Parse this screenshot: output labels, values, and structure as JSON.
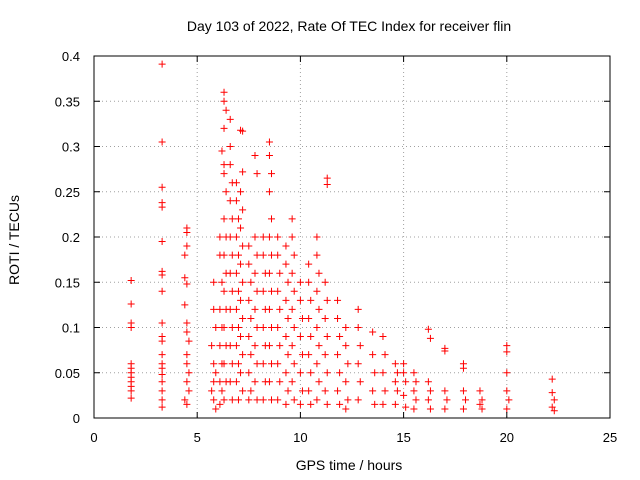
{
  "chart_data": {
    "type": "scatter",
    "title": "Day 103 of 2022, Rate Of TEC Index for receiver flin",
    "xlabel": "GPS time / hours",
    "ylabel": "ROTI / TECUs",
    "xlim": [
      0,
      25
    ],
    "ylim": [
      0,
      0.4
    ],
    "x_ticks": [
      0,
      5,
      10,
      15,
      20,
      25
    ],
    "x_tick_labels": [
      "0",
      "5",
      "10",
      "15",
      "20",
      "25"
    ],
    "y_ticks": [
      0,
      0.05,
      0.1,
      0.15,
      0.2,
      0.25,
      0.3,
      0.35,
      0.4
    ],
    "y_tick_labels": [
      "0",
      "0.05",
      "0.1",
      "0.15",
      "0.2",
      "0.25",
      "0.3",
      "0.35",
      "0.4"
    ],
    "grid": true,
    "marker": "+",
    "color": "#ff0000",
    "series": [
      {
        "points": [
          [
            1.8,
            0.152
          ],
          [
            1.8,
            0.126
          ],
          [
            1.8,
            0.105
          ],
          [
            1.8,
            0.1
          ],
          [
            1.8,
            0.06
          ],
          [
            1.8,
            0.055
          ],
          [
            1.8,
            0.05
          ],
          [
            1.8,
            0.045
          ],
          [
            1.8,
            0.04
          ],
          [
            1.8,
            0.035
          ],
          [
            1.8,
            0.03
          ],
          [
            1.8,
            0.022
          ],
          [
            3.3,
            0.391
          ],
          [
            3.3,
            0.305
          ],
          [
            3.3,
            0.255
          ],
          [
            3.3,
            0.238
          ],
          [
            3.3,
            0.233
          ],
          [
            3.3,
            0.195
          ],
          [
            3.3,
            0.162
          ],
          [
            3.3,
            0.158
          ],
          [
            3.3,
            0.14
          ],
          [
            3.3,
            0.105
          ],
          [
            3.3,
            0.09
          ],
          [
            3.3,
            0.085
          ],
          [
            3.3,
            0.07
          ],
          [
            3.3,
            0.06
          ],
          [
            3.3,
            0.055
          ],
          [
            3.3,
            0.048
          ],
          [
            3.3,
            0.04
          ],
          [
            3.3,
            0.03
          ],
          [
            3.3,
            0.02
          ],
          [
            3.3,
            0.012
          ],
          [
            4.5,
            0.21
          ],
          [
            4.5,
            0.205
          ],
          [
            4.5,
            0.19
          ],
          [
            4.4,
            0.18
          ],
          [
            4.4,
            0.155
          ],
          [
            4.5,
            0.148
          ],
          [
            4.4,
            0.125
          ],
          [
            4.5,
            0.105
          ],
          [
            4.5,
            0.095
          ],
          [
            4.6,
            0.085
          ],
          [
            4.5,
            0.07
          ],
          [
            4.5,
            0.06
          ],
          [
            4.6,
            0.05
          ],
          [
            4.5,
            0.04
          ],
          [
            4.6,
            0.03
          ],
          [
            4.4,
            0.02
          ],
          [
            4.5,
            0.015
          ],
          [
            5.8,
            0.15
          ],
          [
            5.8,
            0.12
          ],
          [
            5.9,
            0.1
          ],
          [
            5.7,
            0.08
          ],
          [
            5.8,
            0.06
          ],
          [
            5.9,
            0.05
          ],
          [
            5.8,
            0.04
          ],
          [
            5.7,
            0.03
          ],
          [
            5.8,
            0.02
          ],
          [
            5.9,
            0.01
          ],
          [
            6.1,
            0.2
          ],
          [
            6.1,
            0.18
          ],
          [
            6.2,
            0.15
          ],
          [
            6.1,
            0.12
          ],
          [
            6.2,
            0.1
          ],
          [
            6.1,
            0.08
          ],
          [
            6.2,
            0.06
          ],
          [
            6.1,
            0.04
          ],
          [
            6.2,
            0.03
          ],
          [
            6.1,
            0.015
          ],
          [
            6.3,
            0.36
          ],
          [
            6.3,
            0.35
          ],
          [
            6.4,
            0.34
          ],
          [
            6.3,
            0.32
          ],
          [
            6.2,
            0.295
          ],
          [
            6.3,
            0.28
          ],
          [
            6.3,
            0.27
          ],
          [
            6.4,
            0.25
          ],
          [
            6.3,
            0.22
          ],
          [
            6.4,
            0.2
          ],
          [
            6.3,
            0.18
          ],
          [
            6.4,
            0.16
          ],
          [
            6.3,
            0.14
          ],
          [
            6.4,
            0.12
          ],
          [
            6.3,
            0.1
          ],
          [
            6.4,
            0.08
          ],
          [
            6.3,
            0.06
          ],
          [
            6.4,
            0.04
          ],
          [
            6.3,
            0.02
          ],
          [
            6.6,
            0.33
          ],
          [
            6.6,
            0.3
          ],
          [
            6.6,
            0.28
          ],
          [
            6.7,
            0.26
          ],
          [
            6.6,
            0.24
          ],
          [
            6.7,
            0.22
          ],
          [
            6.6,
            0.2
          ],
          [
            6.7,
            0.18
          ],
          [
            6.6,
            0.16
          ],
          [
            6.7,
            0.14
          ],
          [
            6.6,
            0.12
          ],
          [
            6.7,
            0.1
          ],
          [
            6.6,
            0.08
          ],
          [
            6.7,
            0.06
          ],
          [
            6.6,
            0.04
          ],
          [
            6.7,
            0.02
          ],
          [
            6.9,
            0.26
          ],
          [
            6.9,
            0.24
          ],
          [
            7.0,
            0.22
          ],
          [
            6.9,
            0.2
          ],
          [
            7.0,
            0.18
          ],
          [
            6.9,
            0.16
          ],
          [
            7.0,
            0.14
          ],
          [
            6.9,
            0.12
          ],
          [
            7.0,
            0.1
          ],
          [
            6.9,
            0.08
          ],
          [
            7.0,
            0.06
          ],
          [
            6.9,
            0.04
          ],
          [
            7.0,
            0.02
          ],
          [
            7.1,
            0.318
          ],
          [
            7.2,
            0.317
          ],
          [
            7.2,
            0.272
          ],
          [
            7.1,
            0.25
          ],
          [
            7.2,
            0.23
          ],
          [
            7.1,
            0.21
          ],
          [
            7.2,
            0.19
          ],
          [
            7.1,
            0.17
          ],
          [
            7.2,
            0.15
          ],
          [
            7.1,
            0.13
          ],
          [
            7.2,
            0.11
          ],
          [
            7.1,
            0.09
          ],
          [
            7.2,
            0.07
          ],
          [
            7.1,
            0.05
          ],
          [
            7.2,
            0.03
          ],
          [
            7.5,
            0.19
          ],
          [
            7.5,
            0.17
          ],
          [
            7.6,
            0.15
          ],
          [
            7.5,
            0.13
          ],
          [
            7.6,
            0.11
          ],
          [
            7.5,
            0.09
          ],
          [
            7.6,
            0.07
          ],
          [
            7.5,
            0.05
          ],
          [
            7.6,
            0.03
          ],
          [
            7.5,
            0.02
          ],
          [
            7.8,
            0.29
          ],
          [
            7.9,
            0.27
          ],
          [
            7.8,
            0.2
          ],
          [
            7.9,
            0.18
          ],
          [
            7.8,
            0.16
          ],
          [
            7.9,
            0.14
          ],
          [
            7.8,
            0.12
          ],
          [
            7.9,
            0.1
          ],
          [
            7.8,
            0.08
          ],
          [
            7.9,
            0.06
          ],
          [
            7.8,
            0.04
          ],
          [
            7.9,
            0.02
          ],
          [
            8.2,
            0.2
          ],
          [
            8.2,
            0.18
          ],
          [
            8.3,
            0.16
          ],
          [
            8.2,
            0.14
          ],
          [
            8.3,
            0.12
          ],
          [
            8.2,
            0.1
          ],
          [
            8.3,
            0.08
          ],
          [
            8.2,
            0.06
          ],
          [
            8.3,
            0.04
          ],
          [
            8.2,
            0.02
          ],
          [
            8.5,
            0.305
          ],
          [
            8.5,
            0.29
          ],
          [
            8.6,
            0.27
          ],
          [
            8.5,
            0.25
          ],
          [
            8.6,
            0.22
          ],
          [
            8.5,
            0.2
          ],
          [
            8.6,
            0.18
          ],
          [
            8.5,
            0.16
          ],
          [
            8.6,
            0.14
          ],
          [
            8.5,
            0.12
          ],
          [
            8.6,
            0.1
          ],
          [
            8.5,
            0.08
          ],
          [
            8.6,
            0.06
          ],
          [
            8.5,
            0.04
          ],
          [
            8.6,
            0.02
          ],
          [
            8.9,
            0.2
          ],
          [
            8.9,
            0.18
          ],
          [
            9.0,
            0.16
          ],
          [
            8.9,
            0.14
          ],
          [
            9.0,
            0.12
          ],
          [
            8.9,
            0.1
          ],
          [
            9.0,
            0.08
          ],
          [
            8.9,
            0.06
          ],
          [
            9.0,
            0.04
          ],
          [
            8.9,
            0.02
          ],
          [
            9.3,
            0.19
          ],
          [
            9.3,
            0.17
          ],
          [
            9.4,
            0.15
          ],
          [
            9.3,
            0.13
          ],
          [
            9.4,
            0.11
          ],
          [
            9.3,
            0.09
          ],
          [
            9.4,
            0.07
          ],
          [
            9.3,
            0.05
          ],
          [
            9.4,
            0.03
          ],
          [
            9.3,
            0.015
          ],
          [
            9.6,
            0.22
          ],
          [
            9.6,
            0.2
          ],
          [
            9.7,
            0.18
          ],
          [
            9.6,
            0.16
          ],
          [
            9.7,
            0.14
          ],
          [
            9.6,
            0.12
          ],
          [
            9.7,
            0.1
          ],
          [
            9.6,
            0.08
          ],
          [
            9.7,
            0.06
          ],
          [
            9.6,
            0.04
          ],
          [
            9.7,
            0.02
          ],
          [
            10.0,
            0.15
          ],
          [
            10.0,
            0.13
          ],
          [
            10.1,
            0.11
          ],
          [
            10.0,
            0.09
          ],
          [
            10.1,
            0.07
          ],
          [
            10.0,
            0.05
          ],
          [
            10.1,
            0.03
          ],
          [
            10.0,
            0.015
          ],
          [
            10.4,
            0.17
          ],
          [
            10.4,
            0.15
          ],
          [
            10.5,
            0.13
          ],
          [
            10.4,
            0.11
          ],
          [
            10.5,
            0.09
          ],
          [
            10.4,
            0.07
          ],
          [
            10.5,
            0.05
          ],
          [
            10.4,
            0.03
          ],
          [
            10.5,
            0.015
          ],
          [
            10.8,
            0.2
          ],
          [
            10.8,
            0.18
          ],
          [
            10.9,
            0.16
          ],
          [
            10.8,
            0.14
          ],
          [
            10.9,
            0.12
          ],
          [
            10.8,
            0.1
          ],
          [
            10.9,
            0.08
          ],
          [
            10.8,
            0.06
          ],
          [
            10.9,
            0.04
          ],
          [
            10.8,
            0.02
          ],
          [
            11.3,
            0.265
          ],
          [
            11.3,
            0.258
          ],
          [
            11.2,
            0.15
          ],
          [
            11.3,
            0.13
          ],
          [
            11.2,
            0.11
          ],
          [
            11.3,
            0.09
          ],
          [
            11.2,
            0.07
          ],
          [
            11.3,
            0.05
          ],
          [
            11.2,
            0.03
          ],
          [
            11.3,
            0.015
          ],
          [
            11.8,
            0.13
          ],
          [
            11.8,
            0.11
          ],
          [
            11.9,
            0.09
          ],
          [
            11.8,
            0.07
          ],
          [
            11.9,
            0.05
          ],
          [
            11.8,
            0.03
          ],
          [
            11.9,
            0.015
          ],
          [
            12.2,
            0.1
          ],
          [
            12.2,
            0.08
          ],
          [
            12.3,
            0.06
          ],
          [
            12.2,
            0.04
          ],
          [
            12.3,
            0.02
          ],
          [
            12.2,
            0.01
          ],
          [
            12.8,
            0.12
          ],
          [
            12.8,
            0.1
          ],
          [
            12.9,
            0.08
          ],
          [
            12.8,
            0.06
          ],
          [
            12.9,
            0.04
          ],
          [
            12.8,
            0.02
          ],
          [
            13.5,
            0.095
          ],
          [
            13.5,
            0.07
          ],
          [
            13.6,
            0.05
          ],
          [
            13.5,
            0.03
          ],
          [
            13.6,
            0.015
          ],
          [
            14.0,
            0.09
          ],
          [
            14.1,
            0.07
          ],
          [
            14.0,
            0.05
          ],
          [
            14.1,
            0.03
          ],
          [
            14.0,
            0.015
          ],
          [
            14.6,
            0.06
          ],
          [
            14.7,
            0.05
          ],
          [
            14.6,
            0.04
          ],
          [
            14.7,
            0.03
          ],
          [
            14.6,
            0.015
          ],
          [
            15.0,
            0.06
          ],
          [
            15.0,
            0.05
          ],
          [
            15.1,
            0.04
          ],
          [
            15.0,
            0.025
          ],
          [
            15.1,
            0.012
          ],
          [
            15.5,
            0.05
          ],
          [
            15.6,
            0.04
          ],
          [
            15.5,
            0.03
          ],
          [
            15.6,
            0.02
          ],
          [
            15.5,
            0.01
          ],
          [
            16.2,
            0.098
          ],
          [
            16.3,
            0.088
          ],
          [
            16.2,
            0.04
          ],
          [
            16.3,
            0.03
          ],
          [
            16.2,
            0.02
          ],
          [
            16.3,
            0.01
          ],
          [
            17.0,
            0.077
          ],
          [
            17.0,
            0.074
          ],
          [
            17.0,
            0.03
          ],
          [
            17.1,
            0.02
          ],
          [
            17.0,
            0.01
          ],
          [
            17.9,
            0.06
          ],
          [
            17.9,
            0.055
          ],
          [
            17.9,
            0.03
          ],
          [
            18.0,
            0.02
          ],
          [
            17.9,
            0.01
          ],
          [
            18.7,
            0.03
          ],
          [
            18.8,
            0.02
          ],
          [
            18.7,
            0.015
          ],
          [
            18.8,
            0.01
          ],
          [
            20.0,
            0.08
          ],
          [
            20.0,
            0.073
          ],
          [
            20.0,
            0.05
          ],
          [
            20.0,
            0.03
          ],
          [
            20.1,
            0.02
          ],
          [
            20.0,
            0.01
          ],
          [
            22.2,
            0.043
          ],
          [
            22.2,
            0.028
          ],
          [
            22.3,
            0.02
          ],
          [
            22.2,
            0.012
          ],
          [
            22.3,
            0.008
          ]
        ]
      }
    ]
  }
}
